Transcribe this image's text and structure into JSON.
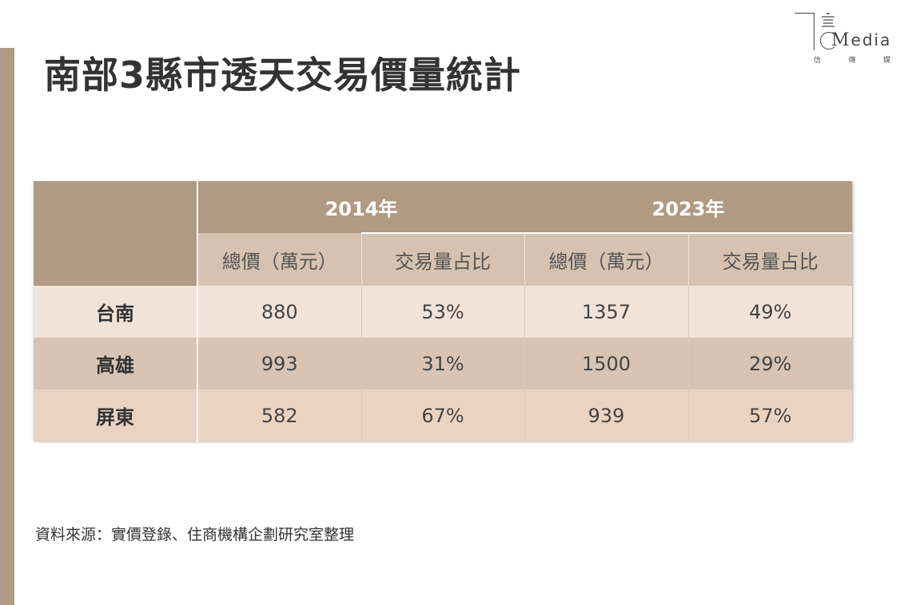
{
  "title": "南部3縣市透天交易價量統計",
  "logo": {
    "brand": "edia",
    "sub": [
      "信",
      "傳",
      "媒"
    ]
  },
  "table": {
    "years": [
      "2014年",
      "2023年"
    ],
    "columns": [
      "總價（萬元）",
      "交易量占比",
      "總價（萬元）",
      "交易量占比"
    ],
    "rows": [
      {
        "label": "台南",
        "values": [
          "880",
          "53%",
          "1357",
          "49%"
        ]
      },
      {
        "label": "高雄",
        "values": [
          "993",
          "31%",
          "1500",
          "29%"
        ]
      },
      {
        "label": "屏東",
        "values": [
          "582",
          "67%",
          "939",
          "57%"
        ]
      }
    ]
  },
  "source": "資料來源：實價登錄、住商機構企劃研究室整理",
  "colors": {
    "accent": "#b09a84",
    "subheader": "#d6c2b0",
    "row_light": "#f2e3d8",
    "row_mid": "#d7c4b4",
    "row_peach": "#ebd3c2"
  }
}
